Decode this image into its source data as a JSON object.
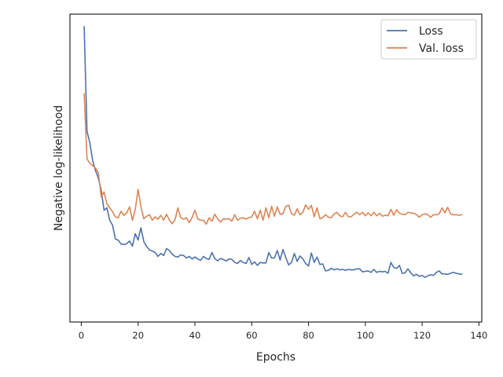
{
  "chart_data": {
    "type": "line",
    "xlabel": "Epochs",
    "ylabel": "Negative log-likelihood",
    "xlim": [
      -4,
      141
    ],
    "xticks": [
      0,
      20,
      40,
      60,
      80,
      100,
      120,
      140
    ],
    "ylim": [
      0.38,
      1.0
    ],
    "yticks_shown": false,
    "grid": false,
    "legend": "top-right",
    "colors": {
      "loss": "#4c72b0",
      "val_loss": "#dd8452"
    },
    "series": [
      {
        "name": "Loss",
        "key": "loss",
        "x": [
          1,
          2,
          3,
          4,
          5,
          6,
          7,
          8,
          9,
          10,
          11,
          12,
          13,
          14,
          15,
          16,
          17,
          18,
          19,
          20,
          21,
          22,
          23,
          24,
          25,
          26,
          27,
          28,
          29,
          30,
          31,
          32,
          33,
          34,
          35,
          36,
          37,
          38,
          39,
          40,
          41,
          42,
          43,
          44,
          45,
          46,
          47,
          48,
          49,
          50,
          51,
          52,
          53,
          54,
          55,
          56,
          57,
          58,
          59,
          60,
          61,
          62,
          63,
          64,
          65,
          66,
          67,
          68,
          69,
          70,
          71,
          72,
          73,
          74,
          75,
          76,
          77,
          78,
          79,
          80,
          81,
          82,
          83,
          84,
          85,
          86,
          87,
          88,
          89,
          90,
          91,
          92,
          93,
          94,
          95,
          96,
          97,
          98,
          99,
          100,
          101,
          102,
          103,
          104,
          105,
          106,
          107,
          108,
          109,
          110,
          111,
          112,
          113,
          114,
          115,
          116,
          117,
          118,
          119,
          120,
          121,
          122,
          123,
          124,
          125,
          126,
          127,
          128,
          129,
          130,
          131,
          132,
          133,
          134
        ],
        "values": [
          0.975,
          0.764,
          0.741,
          0.705,
          0.685,
          0.67,
          0.645,
          0.605,
          0.61,
          0.585,
          0.575,
          0.547,
          0.545,
          0.537,
          0.536,
          0.538,
          0.543,
          0.533,
          0.558,
          0.545,
          0.57,
          0.542,
          0.532,
          0.525,
          0.523,
          0.52,
          0.512,
          0.518,
          0.514,
          0.528,
          0.524,
          0.517,
          0.512,
          0.511,
          0.515,
          0.514,
          0.509,
          0.512,
          0.507,
          0.511,
          0.507,
          0.504,
          0.512,
          0.508,
          0.506,
          0.52,
          0.508,
          0.503,
          0.508,
          0.506,
          0.503,
          0.507,
          0.506,
          0.5,
          0.498,
          0.504,
          0.5,
          0.498,
          0.51,
          0.496,
          0.501,
          0.494,
          0.5,
          0.499,
          0.499,
          0.52,
          0.509,
          0.509,
          0.524,
          0.505,
          0.526,
          0.51,
          0.495,
          0.5,
          0.518,
          0.502,
          0.513,
          0.507,
          0.498,
          0.493,
          0.519,
          0.5,
          0.511,
          0.496,
          0.497,
          0.483,
          0.484,
          0.488,
          0.485,
          0.487,
          0.485,
          0.486,
          0.484,
          0.486,
          0.485,
          0.485,
          0.487,
          0.487,
          0.481,
          0.482,
          0.483,
          0.48,
          0.486,
          0.48,
          0.482,
          0.481,
          0.482,
          0.478,
          0.5,
          0.49,
          0.488,
          0.494,
          0.478,
          0.479,
          0.487,
          0.479,
          0.473,
          0.476,
          0.472,
          0.474,
          0.47,
          0.473,
          0.475,
          0.474,
          0.48,
          0.483,
          0.477,
          0.477,
          0.476,
          0.478,
          0.48,
          0.478,
          0.477,
          0.476
        ]
      },
      {
        "name": "Val. loss",
        "key": "val_loss",
        "x": [
          1,
          2,
          3,
          4,
          5,
          6,
          7,
          8,
          9,
          10,
          11,
          12,
          13,
          14,
          15,
          16,
          17,
          18,
          19,
          20,
          21,
          22,
          23,
          24,
          25,
          26,
          27,
          28,
          29,
          30,
          31,
          32,
          33,
          34,
          35,
          36,
          37,
          38,
          39,
          40,
          41,
          42,
          43,
          44,
          45,
          46,
          47,
          48,
          49,
          50,
          51,
          52,
          53,
          54,
          55,
          56,
          57,
          58,
          59,
          60,
          61,
          62,
          63,
          64,
          65,
          66,
          67,
          68,
          69,
          70,
          71,
          72,
          73,
          74,
          75,
          76,
          77,
          78,
          79,
          80,
          81,
          82,
          83,
          84,
          85,
          86,
          87,
          88,
          89,
          90,
          91,
          92,
          93,
          94,
          95,
          96,
          97,
          98,
          99,
          100,
          101,
          102,
          103,
          104,
          105,
          106,
          107,
          108,
          109,
          110,
          111,
          112,
          113,
          114,
          115,
          116,
          117,
          118,
          119,
          120,
          121,
          122,
          123,
          124,
          125,
          126,
          127,
          128,
          129,
          130,
          131,
          132,
          133,
          134
        ],
        "values": [
          0.84,
          0.708,
          0.7,
          0.695,
          0.69,
          0.681,
          0.632,
          0.642,
          0.618,
          0.61,
          0.602,
          0.592,
          0.59,
          0.603,
          0.595,
          0.6,
          0.612,
          0.585,
          0.607,
          0.647,
          0.612,
          0.588,
          0.593,
          0.596,
          0.585,
          0.592,
          0.587,
          0.595,
          0.585,
          0.597,
          0.585,
          0.578,
          0.586,
          0.61,
          0.59,
          0.587,
          0.59,
          0.58,
          0.59,
          0.605,
          0.588,
          0.585,
          0.585,
          0.577,
          0.59,
          0.583,
          0.597,
          0.588,
          0.581,
          0.588,
          0.587,
          0.588,
          0.583,
          0.596,
          0.585,
          0.589,
          0.59,
          0.587,
          0.59,
          0.592,
          0.603,
          0.588,
          0.605,
          0.585,
          0.61,
          0.59,
          0.613,
          0.593,
          0.612,
          0.597,
          0.598,
          0.613,
          0.615,
          0.598,
          0.595,
          0.608,
          0.596,
          0.601,
          0.616,
          0.607,
          0.615,
          0.592,
          0.61,
          0.588,
          0.59,
          0.596,
          0.591,
          0.59,
          0.598,
          0.601,
          0.594,
          0.592,
          0.601,
          0.592,
          0.592,
          0.597,
          0.601,
          0.596,
          0.601,
          0.594,
          0.6,
          0.594,
          0.601,
          0.594,
          0.599,
          0.593,
          0.595,
          0.594,
          0.607,
          0.595,
          0.606,
          0.599,
          0.597,
          0.596,
          0.601,
          0.6,
          0.599,
          0.596,
          0.591,
          0.596,
          0.598,
          0.596,
          0.591,
          0.596,
          0.596,
          0.598,
          0.61,
          0.6,
          0.611,
          0.598,
          0.596,
          0.596,
          0.595,
          0.596
        ]
      }
    ]
  }
}
